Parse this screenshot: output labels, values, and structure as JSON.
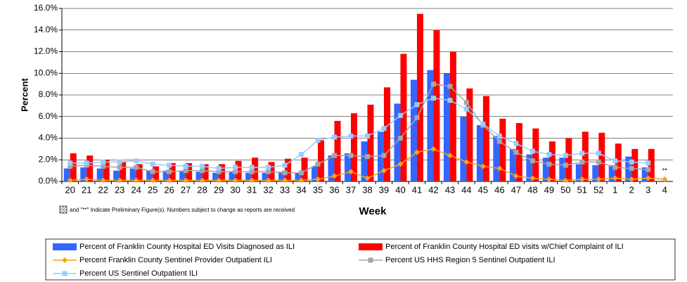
{
  "chart_data": {
    "type": "bar",
    "y_label": "Percent",
    "x_label": "Week",
    "note": "and \"**\" Indicate Preliminary Figure(s).  Numbers subject to change as reports are received",
    "preliminary_marker": "**",
    "categories": [
      "20",
      "21",
      "22",
      "23",
      "24",
      "25",
      "26",
      "27",
      "28",
      "29",
      "30",
      "31",
      "32",
      "33",
      "34",
      "35",
      "36",
      "37",
      "38",
      "39",
      "40",
      "41",
      "42",
      "43",
      "44",
      "45",
      "46",
      "47",
      "48",
      "49",
      "50",
      "51",
      "52",
      "1",
      "2",
      "3",
      "4"
    ],
    "ylim": [
      0,
      16
    ],
    "yticks": [
      {
        "value": 0,
        "label": "0.0%"
      },
      {
        "value": 2,
        "label": "2.0%"
      },
      {
        "value": 4,
        "label": "4.0%"
      },
      {
        "value": 6,
        "label": "6.0%"
      },
      {
        "value": 8,
        "label": "8.0%"
      },
      {
        "value": 10,
        "label": "10.0%"
      },
      {
        "value": 12,
        "label": "12.0%"
      },
      {
        "value": 14,
        "label": "14.0%"
      },
      {
        "value": 16,
        "label": "16.0%"
      }
    ],
    "grid": true,
    "series": [
      {
        "name": "Percent of Franklin County Hospital ED Visits Diagnosed as ILI",
        "type": "bar",
        "color": "#3366ff",
        "values": [
          1.2,
          1.3,
          1.2,
          1.0,
          1.2,
          1.0,
          1.0,
          1.0,
          0.9,
          0.8,
          0.9,
          0.8,
          0.8,
          0.9,
          0.8,
          1.4,
          2.4,
          2.6,
          3.7,
          4.6,
          7.2,
          9.4,
          10.3,
          10.0,
          6.0,
          5.2,
          4.2,
          3.0,
          2.5,
          2.2,
          2.2,
          1.6,
          1.5,
          1.5,
          2.3,
          1.3,
          null
        ]
      },
      {
        "name": "Percent of Franklin County Hospital ED visits w/Chief Complaint of ILI",
        "type": "bar",
        "color": "#ff0000",
        "values": [
          2.6,
          2.4,
          2.0,
          1.8,
          1.6,
          1.4,
          1.7,
          1.7,
          1.6,
          1.6,
          1.9,
          2.2,
          1.8,
          2.1,
          2.2,
          3.8,
          5.6,
          6.3,
          7.1,
          8.7,
          11.8,
          15.5,
          14.0,
          12.0,
          8.6,
          7.9,
          5.8,
          5.4,
          4.9,
          3.7,
          4.0,
          4.6,
          4.5,
          3.5,
          3.0,
          3.0,
          null
        ]
      },
      {
        "name": "Percent Franklin County Sentinel Provider Outpatient ILI",
        "type": "line",
        "marker": "diamond",
        "color": "#f7a21b",
        "values": [
          0.1,
          0.2,
          0.1,
          0.1,
          0.1,
          0.1,
          0.1,
          0.1,
          0.1,
          0.1,
          0.1,
          0.1,
          0.1,
          0.1,
          0.1,
          0.2,
          0.5,
          0.9,
          0.3,
          1.0,
          1.6,
          2.7,
          3.0,
          2.4,
          1.8,
          1.4,
          1.2,
          0.5,
          0.3,
          0.2,
          0.1,
          0.2,
          0.2,
          0.3,
          0.2,
          0.3,
          0.2
        ]
      },
      {
        "name": "Percent US HHS Region 5 Sentinel Outpatient ILI",
        "type": "line",
        "marker": "square",
        "color": "#a6a6a6",
        "values": [
          1.4,
          1.5,
          1.4,
          1.3,
          1.3,
          0.9,
          0.9,
          1.0,
          1.0,
          0.9,
          0.9,
          0.9,
          0.9,
          0.8,
          0.8,
          1.6,
          2.4,
          2.4,
          2.3,
          2.4,
          4.0,
          5.9,
          9.0,
          8.8,
          7.3,
          5.2,
          3.7,
          2.7,
          1.9,
          1.6,
          1.5,
          1.8,
          1.8,
          1.3,
          1.2,
          1.1,
          null
        ]
      },
      {
        "name": "Percent US Sentinel Outpatient ILI",
        "type": "line",
        "marker": "square",
        "color": "#99ccff",
        "values": [
          1.7,
          1.7,
          1.8,
          1.8,
          1.9,
          1.6,
          1.5,
          1.4,
          1.4,
          1.2,
          1.3,
          1.3,
          1.3,
          1.5,
          2.5,
          3.8,
          4.1,
          4.2,
          4.2,
          4.9,
          6.1,
          7.1,
          7.7,
          7.5,
          6.7,
          5.3,
          4.2,
          3.5,
          2.8,
          2.5,
          2.4,
          2.6,
          2.6,
          1.9,
          1.8,
          1.7,
          null
        ]
      }
    ]
  }
}
